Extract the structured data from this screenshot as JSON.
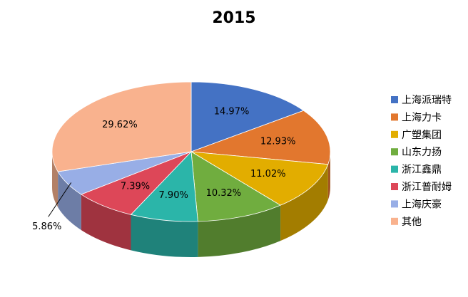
{
  "chart_data": {
    "type": "pie",
    "title": "2015",
    "categories": [
      "上海派瑞特",
      "上海力卡",
      "广塑集团",
      "山东力扬",
      "浙江鑫鼎",
      "浙江普耐姆",
      "上海庆豪",
      "其他"
    ],
    "values": [
      14.97,
      12.93,
      11.02,
      10.32,
      7.9,
      7.39,
      5.86,
      29.62
    ],
    "value_labels": [
      "14.97%",
      "12.93%",
      "11.02%",
      "10.32%",
      "7.90%",
      "7.39%",
      "5.86%",
      "29.62%"
    ],
    "colors": [
      "#4472c4",
      "#e2772e",
      "#e2ad00",
      "#70ad3f",
      "#2bb5a9",
      "#dd4758",
      "#98aee6",
      "#f9b28e"
    ],
    "legend": "right"
  }
}
